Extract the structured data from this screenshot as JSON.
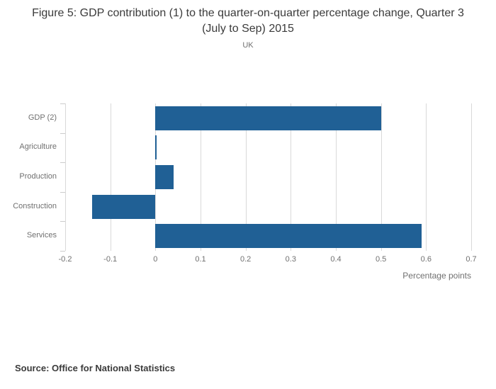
{
  "title": "Figure 5: GDP contribution (1) to the quarter-on-quarter percentage change, Quarter 3 (July to Sep) 2015",
  "subtitle": "UK",
  "source": "Source: Office for National Statistics",
  "chart_data": {
    "type": "bar",
    "orientation": "horizontal",
    "title": "Figure 5: GDP contribution (1) to the quarter-on-quarter percentage change, Quarter 3 (July to Sep) 2015",
    "subtitle": "UK",
    "categories": [
      "GDP (2)",
      "Agriculture",
      "Production",
      "Construction",
      "Services"
    ],
    "values": [
      0.5,
      0.0,
      0.04,
      -0.14,
      0.59
    ],
    "xlabel": "Percentage points",
    "ylabel": "",
    "xlim": [
      -0.2,
      0.7
    ],
    "xtick_labels": [
      "-0.2",
      "-0.1",
      "0",
      "0.1",
      "0.2",
      "0.3",
      "0.4",
      "0.5",
      "0.6",
      "0.7"
    ],
    "grid": true,
    "legend": "none",
    "bar_color": "#206095",
    "gridline_color": "#d9d9d9"
  }
}
